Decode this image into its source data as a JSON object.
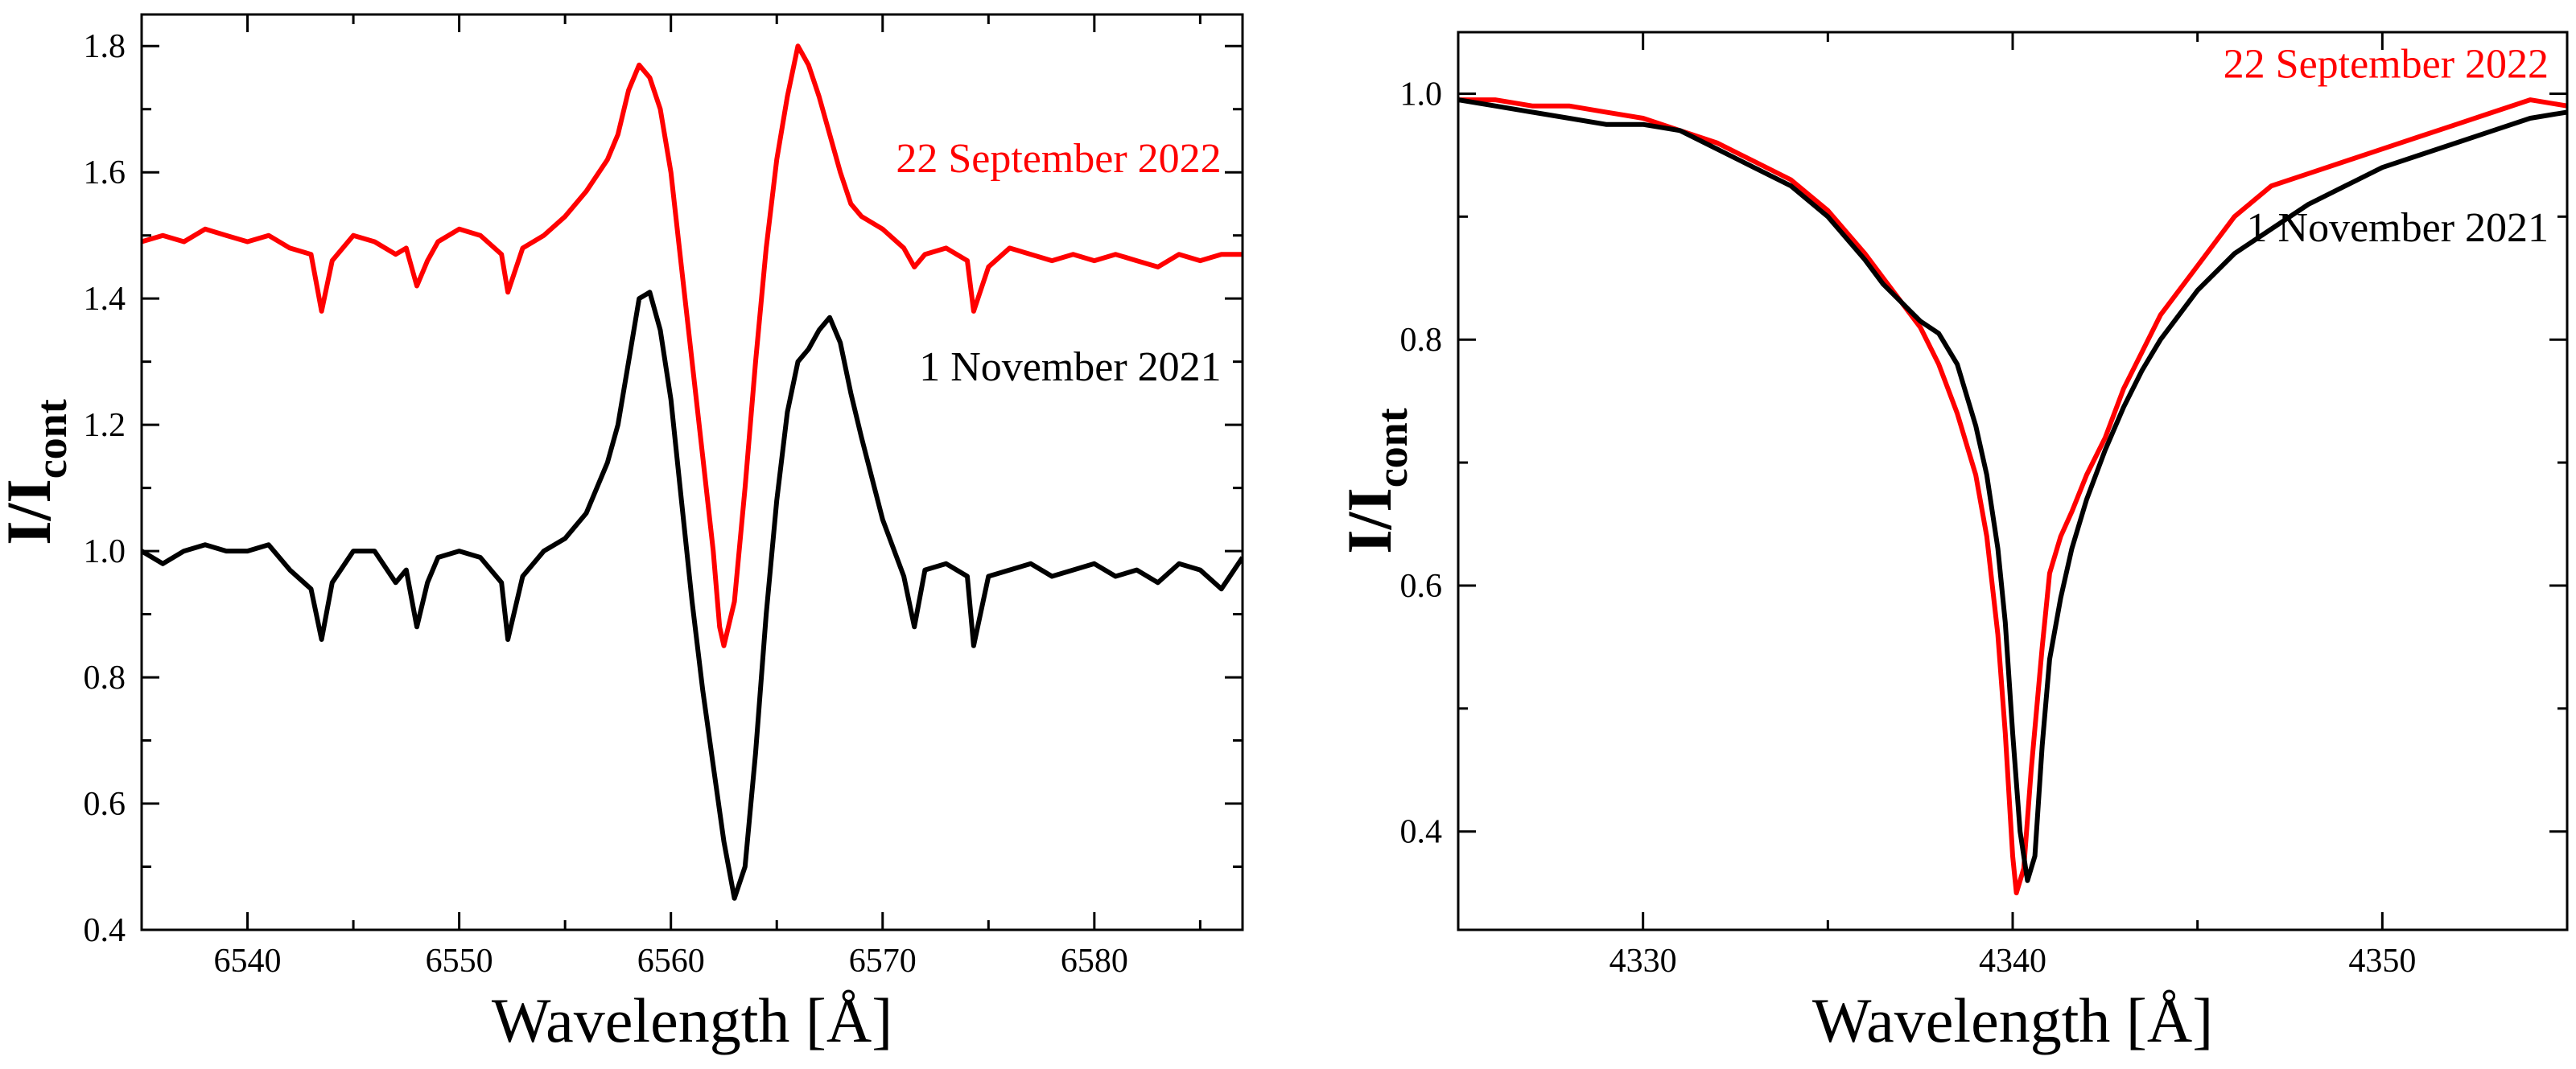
{
  "colors": {
    "series_2022": "#ff0000",
    "series_2021": "#000000",
    "axes": "#000000",
    "background": "#ffffff"
  },
  "chart_data": [
    {
      "type": "line",
      "panel": "left",
      "title": "",
      "xlabel": "Wavelength [Å]",
      "ylabel": "I/I",
      "ylabel_sub": "cont",
      "xlim": [
        6535,
        6587
      ],
      "ylim": [
        0.4,
        1.85
      ],
      "xticks": [
        6540,
        6550,
        6560,
        6570,
        6580
      ],
      "yticks": [
        0.4,
        0.6,
        0.8,
        1.0,
        1.2,
        1.4,
        1.6,
        1.8
      ],
      "xtick_labels": [
        "6540",
        "6550",
        "6560",
        "6570",
        "6580"
      ],
      "ytick_labels": [
        "0.4",
        "0.6",
        "0.8",
        "1.0",
        "1.2",
        "1.4",
        "1.6",
        "1.8"
      ],
      "series": [
        {
          "name": "22 September 2022",
          "color": "#ff0000",
          "label_anchor": [
            6586,
            1.6
          ],
          "x": [
            6535,
            6536,
            6537,
            6538,
            6539,
            6540,
            6541,
            6542,
            6543,
            6543.5,
            6544,
            6545,
            6546,
            6547,
            6547.5,
            6548,
            6548.5,
            6549,
            6550,
            6551,
            6552,
            6552.3,
            6553,
            6554,
            6555,
            6556,
            6557,
            6557.5,
            6558,
            6558.5,
            6559,
            6559.5,
            6560,
            6560.5,
            6561,
            6561.5,
            6562,
            6562.3,
            6562.5,
            6563,
            6563.5,
            6564,
            6564.5,
            6565,
            6565.5,
            6566,
            6566.5,
            6567,
            6567.5,
            6568,
            6568.5,
            6569,
            6570,
            6571,
            6571.5,
            6572,
            6573,
            6574,
            6574.3,
            6575,
            6576,
            6577,
            6578,
            6579,
            6580,
            6581,
            6582,
            6583,
            6584,
            6585,
            6586,
            6587
          ],
          "y": [
            1.49,
            1.5,
            1.49,
            1.51,
            1.5,
            1.49,
            1.5,
            1.48,
            1.47,
            1.38,
            1.46,
            1.5,
            1.49,
            1.47,
            1.48,
            1.42,
            1.46,
            1.49,
            1.51,
            1.5,
            1.47,
            1.41,
            1.48,
            1.5,
            1.53,
            1.57,
            1.62,
            1.66,
            1.73,
            1.77,
            1.75,
            1.7,
            1.6,
            1.45,
            1.3,
            1.15,
            1.0,
            0.88,
            0.85,
            0.92,
            1.1,
            1.3,
            1.48,
            1.62,
            1.72,
            1.8,
            1.77,
            1.72,
            1.66,
            1.6,
            1.55,
            1.53,
            1.51,
            1.48,
            1.45,
            1.47,
            1.48,
            1.46,
            1.38,
            1.45,
            1.48,
            1.47,
            1.46,
            1.47,
            1.46,
            1.47,
            1.46,
            1.45,
            1.47,
            1.46,
            1.47,
            1.47
          ]
        },
        {
          "name": "1 November 2021",
          "color": "#000000",
          "label_anchor": [
            6586,
            1.27
          ],
          "x": [
            6535,
            6536,
            6537,
            6538,
            6539,
            6540,
            6541,
            6542,
            6543,
            6543.5,
            6544,
            6545,
            6546,
            6547,
            6547.5,
            6548,
            6548.5,
            6549,
            6550,
            6551,
            6552,
            6552.3,
            6553,
            6554,
            6555,
            6556,
            6557,
            6557.5,
            6558,
            6558.5,
            6559,
            6559.5,
            6560,
            6560.5,
            6561,
            6561.5,
            6562,
            6562.5,
            6563,
            6563.5,
            6564,
            6564.5,
            6565,
            6565.5,
            6566,
            6566.5,
            6567,
            6567.5,
            6568,
            6568.5,
            6569,
            6570,
            6571,
            6571.5,
            6572,
            6573,
            6574,
            6574.3,
            6575,
            6576,
            6577,
            6578,
            6579,
            6580,
            6581,
            6582,
            6583,
            6584,
            6585,
            6586,
            6587
          ],
          "y": [
            1.0,
            0.98,
            1.0,
            1.01,
            1.0,
            1.0,
            1.01,
            0.97,
            0.94,
            0.86,
            0.95,
            1.0,
            1.0,
            0.95,
            0.97,
            0.88,
            0.95,
            0.99,
            1.0,
            0.99,
            0.95,
            0.86,
            0.96,
            1.0,
            1.02,
            1.06,
            1.14,
            1.2,
            1.3,
            1.4,
            1.41,
            1.35,
            1.24,
            1.08,
            0.92,
            0.78,
            0.66,
            0.54,
            0.45,
            0.5,
            0.68,
            0.9,
            1.08,
            1.22,
            1.3,
            1.32,
            1.35,
            1.37,
            1.33,
            1.25,
            1.18,
            1.05,
            0.96,
            0.88,
            0.97,
            0.98,
            0.96,
            0.85,
            0.96,
            0.97,
            0.98,
            0.96,
            0.97,
            0.98,
            0.96,
            0.97,
            0.95,
            0.98,
            0.97,
            0.94,
            0.99
          ]
        }
      ]
    },
    {
      "type": "line",
      "panel": "right",
      "title": "",
      "xlabel": "Wavelength [Å]",
      "ylabel": "I/I",
      "ylabel_sub": "cont",
      "xlim": [
        4325,
        4355
      ],
      "ylim": [
        0.32,
        1.05
      ],
      "xticks": [
        4330,
        4340,
        4350
      ],
      "yticks": [
        0.4,
        0.6,
        0.8,
        1.0
      ],
      "xtick_labels": [
        "4330",
        "4340",
        "4350"
      ],
      "ytick_labels": [
        "0.4",
        "0.6",
        "0.8",
        "1.0"
      ],
      "series": [
        {
          "name": "22 September 2022",
          "color": "#ff0000",
          "label_anchor": [
            4354.5,
            1.013
          ],
          "x": [
            4325,
            4326,
            4327,
            4328,
            4329,
            4330,
            4331,
            4332,
            4333,
            4334,
            4335,
            4336,
            4336.5,
            4337,
            4337.5,
            4338,
            4338.5,
            4339,
            4339.3,
            4339.6,
            4339.8,
            4340,
            4340.1,
            4340.3,
            4340.5,
            4340.8,
            4341,
            4341.3,
            4341.6,
            4342,
            4342.5,
            4343,
            4343.5,
            4344,
            4345,
            4346,
            4347,
            4348,
            4349,
            4350,
            4351,
            4352,
            4353,
            4354,
            4355
          ],
          "y": [
            0.995,
            0.995,
            0.99,
            0.99,
            0.985,
            0.98,
            0.97,
            0.96,
            0.945,
            0.93,
            0.905,
            0.87,
            0.85,
            0.83,
            0.81,
            0.78,
            0.74,
            0.69,
            0.64,
            0.56,
            0.48,
            0.38,
            0.35,
            0.37,
            0.45,
            0.55,
            0.61,
            0.64,
            0.66,
            0.69,
            0.72,
            0.76,
            0.79,
            0.82,
            0.86,
            0.9,
            0.925,
            0.935,
            0.945,
            0.955,
            0.965,
            0.975,
            0.985,
            0.995,
            0.99
          ]
        },
        {
          "name": "1 November 2021",
          "color": "#000000",
          "label_anchor": [
            4354.5,
            0.88
          ],
          "x": [
            4325,
            4326,
            4327,
            4328,
            4329,
            4330,
            4331,
            4332,
            4333,
            4334,
            4335,
            4336,
            4336.5,
            4337,
            4337.5,
            4338,
            4338.5,
            4339,
            4339.3,
            4339.6,
            4339.8,
            4340,
            4340.2,
            4340.4,
            4340.6,
            4340.8,
            4341,
            4341.3,
            4341.6,
            4342,
            4342.5,
            4343,
            4343.5,
            4344,
            4345,
            4346,
            4347,
            4348,
            4349,
            4350,
            4351,
            4352,
            4353,
            4354,
            4355
          ],
          "y": [
            0.995,
            0.99,
            0.985,
            0.98,
            0.975,
            0.975,
            0.97,
            0.955,
            0.94,
            0.925,
            0.9,
            0.865,
            0.845,
            0.83,
            0.815,
            0.805,
            0.78,
            0.73,
            0.69,
            0.63,
            0.57,
            0.48,
            0.4,
            0.36,
            0.38,
            0.47,
            0.54,
            0.59,
            0.63,
            0.67,
            0.71,
            0.745,
            0.775,
            0.8,
            0.84,
            0.87,
            0.89,
            0.91,
            0.925,
            0.94,
            0.95,
            0.96,
            0.97,
            0.98,
            0.985
          ]
        }
      ]
    }
  ]
}
